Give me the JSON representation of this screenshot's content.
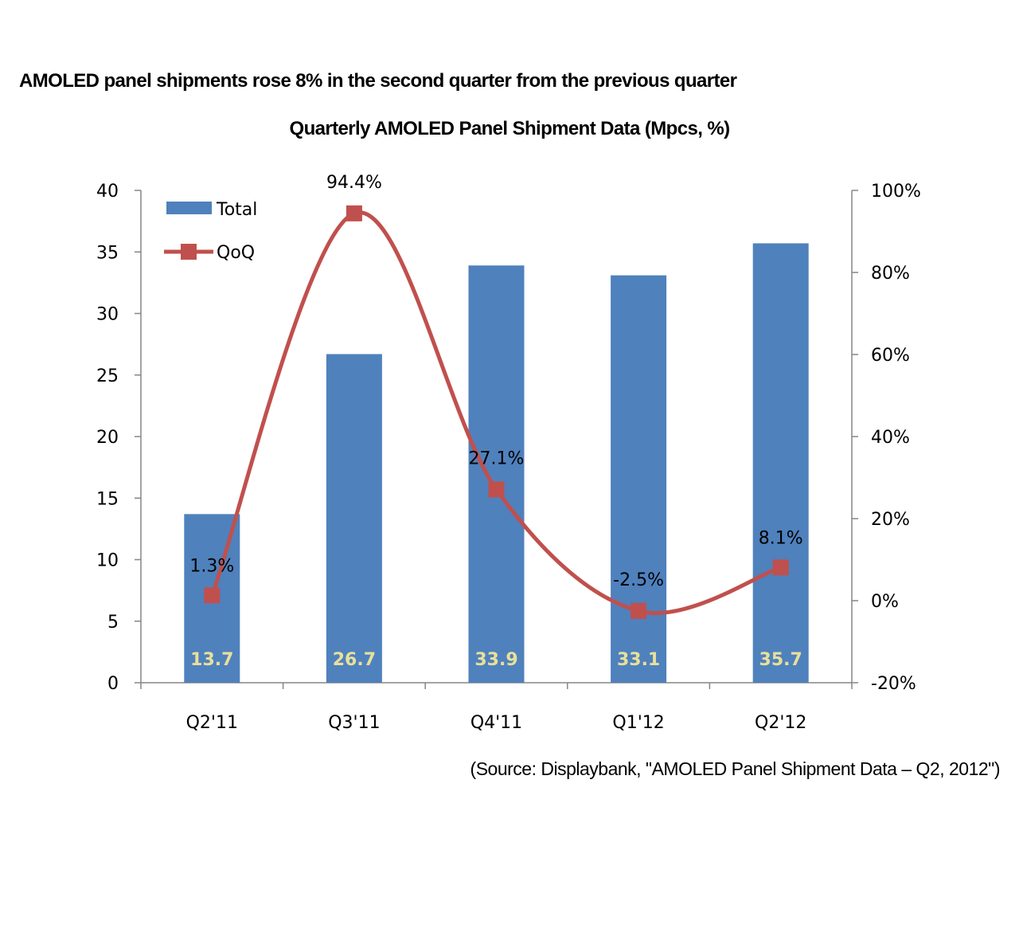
{
  "headline": "AMOLED panel shipments rose 8% in the second quarter from the previous quarter",
  "source": "(Source: Displaybank, \"AMOLED Panel Shipment Data – Q2, 2012\")",
  "colors": {
    "bar": "#4F81BD",
    "line": "#C0504D",
    "bar_label": "#E8E09A",
    "axis": "#868686"
  },
  "chart_data": {
    "type": "bar",
    "title": "Quarterly AMOLED Panel Shipment Data (Mpcs, %)",
    "categories": [
      "Q2'11",
      "Q3'11",
      "Q4'11",
      "Q1'12",
      "Q2'12"
    ],
    "series": [
      {
        "name": "Total",
        "type": "bar",
        "axis": "left",
        "values": [
          13.7,
          26.7,
          33.9,
          33.1,
          35.7
        ],
        "labels": [
          "13.7",
          "26.7",
          "33.9",
          "33.1",
          "35.7"
        ]
      },
      {
        "name": "QoQ",
        "type": "line",
        "axis": "right",
        "smooth": true,
        "marker": "square",
        "values": [
          1.3,
          94.4,
          27.1,
          -2.5,
          8.1
        ],
        "labels": [
          "1.3%",
          "94.4%",
          "27.1%",
          "-2.5%",
          "8.1%"
        ]
      }
    ],
    "y_left": {
      "min": 0,
      "max": 40,
      "ticks": [
        "0",
        "5",
        "10",
        "15",
        "20",
        "25",
        "30",
        "35",
        "40"
      ]
    },
    "y_right": {
      "min": -20,
      "max": 100,
      "ticks": [
        "-20%",
        "0%",
        "20%",
        "40%",
        "60%",
        "80%",
        "100%"
      ]
    },
    "xlabel": "",
    "ylabel": "",
    "grid": false,
    "legend": "top-left"
  }
}
